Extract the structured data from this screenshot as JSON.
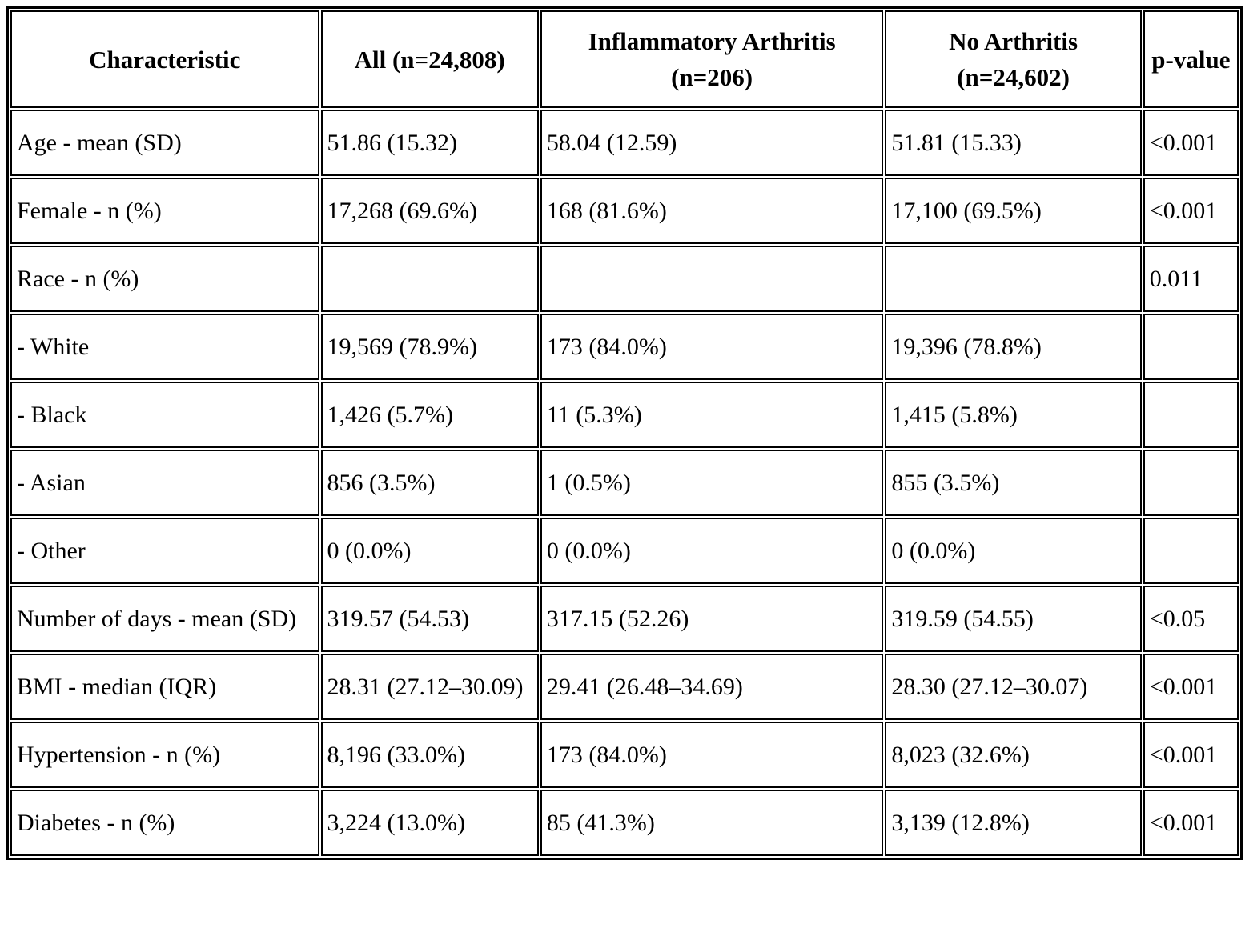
{
  "table": {
    "columns": [
      "Characteristic",
      "All (n=24,808)",
      "Inflammatory Arthritis (n=206)",
      "No Arthritis (n=24,602)",
      "p-value"
    ],
    "rows": [
      {
        "cells": [
          "Age - mean (SD)",
          "51.86 (15.32)",
          "58.04 (12.59)",
          "51.81 (15.33)",
          "<0.001"
        ]
      },
      {
        "cells": [
          "Female - n (%)",
          "17,268 (69.6%)",
          "168 (81.6%)",
          "17,100 (69.5%)",
          "<0.001"
        ]
      },
      {
        "cells": [
          "Race - n (%)",
          "",
          "",
          "",
          "0.011"
        ]
      },
      {
        "cells": [
          "- White",
          "19,569 (78.9%)",
          "173 (84.0%)",
          "19,396 (78.8%)",
          ""
        ]
      },
      {
        "cells": [
          "- Black",
          "1,426 (5.7%)",
          "11 (5.3%)",
          "1,415 (5.8%)",
          ""
        ]
      },
      {
        "cells": [
          "- Asian",
          "856 (3.5%)",
          "1 (0.5%)",
          "855 (3.5%)",
          ""
        ]
      },
      {
        "cells": [
          "- Other",
          "0 (0.0%)",
          "0 (0.0%)",
          "0 (0.0%)",
          ""
        ]
      },
      {
        "cells": [
          "Number of days - mean (SD)",
          "319.57 (54.53)",
          "317.15 (52.26)",
          "319.59 (54.55)",
          "<0.05"
        ]
      },
      {
        "cells": [
          "BMI - median (IQR)",
          "28.31 (27.12–30.09)",
          "29.41 (26.48–34.69)",
          "28.30 (27.12–30.07)",
          "<0.001"
        ]
      },
      {
        "cells": [
          "Hypertension - n (%)",
          "8,196 (33.0%)",
          "173 (84.0%)",
          "8,023 (32.6%)",
          "<0.001"
        ]
      },
      {
        "cells": [
          "Diabetes - n (%)",
          "3,224 (13.0%)",
          "85 (41.3%)",
          "3,139 (12.8%)",
          "<0.001"
        ]
      }
    ]
  }
}
